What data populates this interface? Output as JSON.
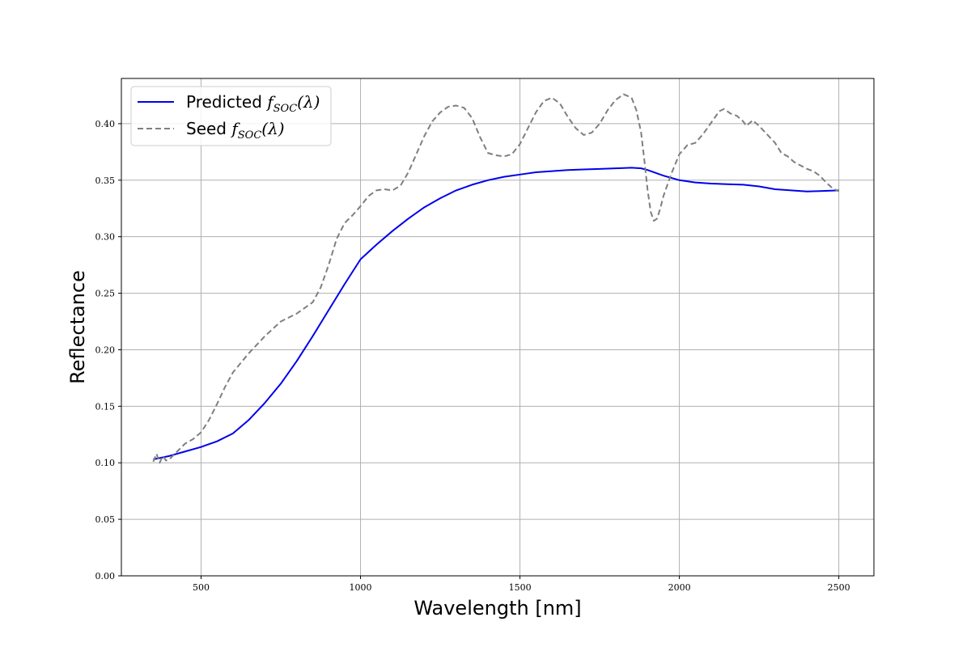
{
  "chart_data": {
    "type": "line",
    "xlabel": "Wavelength [nm]",
    "ylabel": "Reflectance",
    "xlim": [
      250,
      2610
    ],
    "ylim": [
      0.0,
      0.44
    ],
    "x_ticks": [
      500,
      1000,
      1500,
      2000,
      2500
    ],
    "y_ticks": [
      0.0,
      0.05,
      0.1,
      0.15,
      0.2,
      0.25,
      0.3,
      0.35,
      0.4
    ],
    "x_tick_labels": [
      "500",
      "1000",
      "1500",
      "2000",
      "2500"
    ],
    "y_tick_labels": [
      "0.00",
      "0.05",
      "0.10",
      "0.15",
      "0.20",
      "0.25",
      "0.30",
      "0.35",
      "0.40"
    ],
    "grid": true,
    "legend_position": "top-left",
    "series": [
      {
        "name_text": "Predicted",
        "name_math": "f",
        "name_sub": "SOC",
        "name_arg": "(λ)",
        "color": "#0000ee",
        "dash": "solid",
        "x": [
          350,
          400,
          450,
          500,
          550,
          600,
          650,
          700,
          750,
          800,
          850,
          900,
          950,
          1000,
          1050,
          1100,
          1150,
          1200,
          1250,
          1300,
          1350,
          1400,
          1450,
          1500,
          1550,
          1600,
          1650,
          1700,
          1750,
          1800,
          1850,
          1880,
          1900,
          1950,
          2000,
          2050,
          2100,
          2150,
          2200,
          2250,
          2300,
          2350,
          2400,
          2450,
          2500
        ],
        "y": [
          0.103,
          0.106,
          0.11,
          0.114,
          0.119,
          0.126,
          0.138,
          0.153,
          0.17,
          0.19,
          0.212,
          0.235,
          0.258,
          0.28,
          0.293,
          0.305,
          0.316,
          0.326,
          0.334,
          0.341,
          0.346,
          0.35,
          0.353,
          0.355,
          0.357,
          0.358,
          0.359,
          0.3595,
          0.36,
          0.3605,
          0.361,
          0.3605,
          0.359,
          0.354,
          0.35,
          0.348,
          0.347,
          0.3465,
          0.346,
          0.3445,
          0.342,
          0.341,
          0.34,
          0.3405,
          0.341
        ]
      },
      {
        "name_text": "Seed",
        "name_math": "f",
        "name_sub": "SOC",
        "name_arg": "(λ)",
        "color": "#7f7f7f",
        "dash": "dashed",
        "x": [
          350,
          360,
          370,
          380,
          390,
          400,
          425,
          450,
          475,
          500,
          525,
          550,
          575,
          600,
          650,
          700,
          750,
          800,
          850,
          875,
          900,
          925,
          950,
          975,
          1000,
          1025,
          1050,
          1075,
          1100,
          1125,
          1150,
          1175,
          1200,
          1225,
          1250,
          1275,
          1300,
          1325,
          1350,
          1375,
          1400,
          1425,
          1450,
          1475,
          1500,
          1525,
          1550,
          1575,
          1600,
          1625,
          1650,
          1675,
          1700,
          1725,
          1750,
          1775,
          1800,
          1825,
          1850,
          1865,
          1880,
          1890,
          1900,
          1910,
          1920,
          1930,
          1940,
          1950,
          1975,
          2000,
          2025,
          2050,
          2075,
          2100,
          2125,
          2140,
          2160,
          2180,
          2200,
          2210,
          2230,
          2250,
          2270,
          2300,
          2320,
          2340,
          2360,
          2380,
          2400,
          2420,
          2440,
          2460,
          2480,
          2500
        ],
        "y": [
          0.101,
          0.108,
          0.1,
          0.106,
          0.102,
          0.103,
          0.11,
          0.117,
          0.121,
          0.127,
          0.138,
          0.152,
          0.167,
          0.18,
          0.197,
          0.212,
          0.225,
          0.232,
          0.242,
          0.255,
          0.275,
          0.298,
          0.312,
          0.319,
          0.327,
          0.336,
          0.341,
          0.342,
          0.341,
          0.345,
          0.357,
          0.373,
          0.389,
          0.402,
          0.41,
          0.415,
          0.416,
          0.414,
          0.405,
          0.388,
          0.374,
          0.372,
          0.371,
          0.373,
          0.382,
          0.396,
          0.41,
          0.42,
          0.423,
          0.418,
          0.406,
          0.396,
          0.39,
          0.392,
          0.4,
          0.412,
          0.421,
          0.426,
          0.423,
          0.412,
          0.392,
          0.368,
          0.342,
          0.322,
          0.314,
          0.316,
          0.325,
          0.336,
          0.356,
          0.373,
          0.381,
          0.383,
          0.391,
          0.401,
          0.411,
          0.413,
          0.409,
          0.407,
          0.402,
          0.398,
          0.403,
          0.398,
          0.392,
          0.383,
          0.374,
          0.371,
          0.366,
          0.363,
          0.36,
          0.358,
          0.354,
          0.348,
          0.343,
          0.34
        ]
      }
    ]
  }
}
